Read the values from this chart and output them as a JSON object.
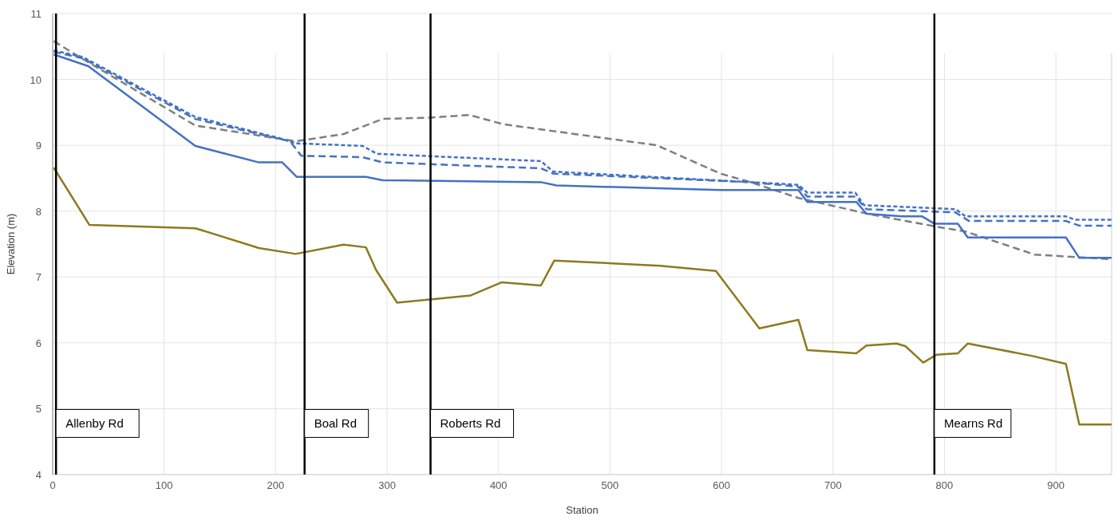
{
  "chart_data": {
    "type": "line",
    "xlabel": "Station",
    "ylabel": "Elevation (m)",
    "xlim": [
      0,
      950
    ],
    "xticks": [
      0,
      100,
      200,
      300,
      400,
      500,
      600,
      700,
      800,
      900
    ],
    "ylim": [
      4,
      11
    ],
    "yticks": [
      4,
      5,
      6,
      7,
      8,
      9,
      10,
      11
    ],
    "grid": true,
    "marker": "none",
    "series": [
      {
        "color": "#8c7a1e",
        "line_style": "solid",
        "x": [
          1,
          33,
          128,
          185,
          218,
          261,
          281,
          290,
          309,
          375,
          403,
          438,
          450,
          545,
          595,
          634,
          669,
          677,
          721,
          730,
          757,
          765,
          781,
          793,
          812,
          821,
          879,
          909,
          921,
          950
        ],
        "values": [
          8.66,
          7.79,
          7.74,
          7.44,
          7.35,
          7.49,
          7.45,
          7.11,
          6.61,
          6.72,
          6.92,
          6.87,
          7.25,
          7.17,
          7.09,
          6.22,
          6.35,
          5.89,
          5.84,
          5.96,
          5.99,
          5.95,
          5.7,
          5.82,
          5.84,
          5.99,
          5.8,
          5.68,
          4.76,
          4.76
        ]
      },
      {
        "color": "#7f7f7f",
        "line_style": "dashed",
        "x": [
          1,
          27,
          128,
          218,
          261,
          296,
          339,
          374,
          404,
          542,
          599,
          626,
          669,
          731,
          791,
          819,
          881,
          950
        ],
        "values": [
          10.58,
          10.31,
          9.3,
          9.06,
          9.17,
          9.4,
          9.42,
          9.46,
          9.32,
          9.0,
          8.57,
          8.44,
          8.2,
          7.96,
          7.77,
          7.69,
          7.34,
          7.27
        ]
      },
      {
        "color": "#4472c4",
        "line_style": "solid",
        "x": [
          1,
          32,
          128,
          185,
          206,
          219,
          281,
          296,
          438,
          452,
          599,
          669,
          677,
          721,
          730,
          762,
          780,
          791,
          812,
          821,
          909,
          921,
          950
        ],
        "values": [
          10.38,
          10.2,
          8.99,
          8.74,
          8.74,
          8.52,
          8.52,
          8.47,
          8.44,
          8.39,
          8.32,
          8.32,
          8.14,
          8.14,
          7.96,
          7.92,
          7.92,
          7.81,
          7.81,
          7.6,
          7.6,
          7.29,
          7.29
        ]
      },
      {
        "color": "#4472c4",
        "line_style": "dotted",
        "x": [
          1,
          27,
          128,
          203,
          218,
          278,
          291,
          438,
          449,
          626,
          669,
          677,
          720,
          728,
          810,
          819,
          909,
          917,
          950
        ],
        "values": [
          10.44,
          10.34,
          9.43,
          9.11,
          9.03,
          8.99,
          8.87,
          8.76,
          8.6,
          8.44,
          8.4,
          8.28,
          8.28,
          8.09,
          8.03,
          7.92,
          7.92,
          7.87,
          7.87
        ]
      },
      {
        "color": "#4472c4",
        "line_style": "dashed",
        "x": [
          1,
          27,
          128,
          203,
          213,
          223,
          278,
          296,
          438,
          449,
          626,
          669,
          677,
          720,
          730,
          810,
          822,
          909,
          921,
          950
        ],
        "values": [
          10.42,
          10.32,
          9.4,
          9.1,
          9.06,
          8.84,
          8.82,
          8.74,
          8.65,
          8.57,
          8.44,
          8.37,
          8.22,
          8.22,
          8.03,
          7.98,
          7.85,
          7.85,
          7.78,
          7.78
        ]
      }
    ],
    "ref_lines": [
      {
        "axis": "x",
        "value": 3,
        "label": "Allenby Rd",
        "color": "#000000"
      },
      {
        "axis": "x",
        "value": 226,
        "label": "Boal Rd",
        "color": "#000000"
      },
      {
        "axis": "x",
        "value": 339,
        "label": "Roberts Rd",
        "color": "#000000"
      },
      {
        "axis": "x",
        "value": 791,
        "label": "Mearns Rd",
        "color": "#000000"
      }
    ]
  }
}
